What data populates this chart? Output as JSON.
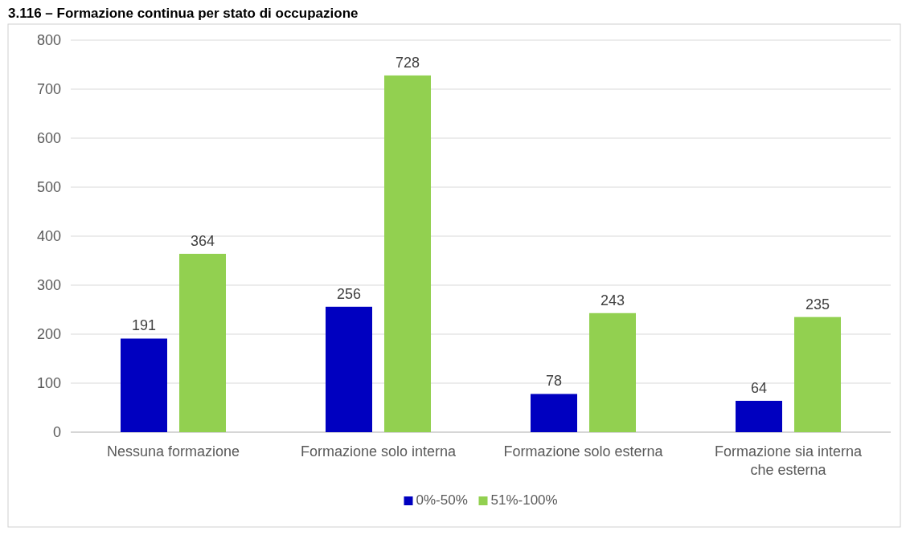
{
  "chart_data": {
    "type": "bar",
    "title": "3.116 – Formazione continua per stato di occupazione",
    "categories": [
      "Nessuna formazione",
      "Formazione solo interna",
      "Formazione solo esterna",
      "Formazione sia interna che esterna"
    ],
    "series": [
      {
        "name": "0%-50%",
        "color": "#0000c0",
        "values": [
          191,
          256,
          78,
          64
        ]
      },
      {
        "name": "51%-100%",
        "color": "#92d050",
        "values": [
          364,
          728,
          243,
          235
        ]
      }
    ],
    "ylim": [
      0,
      800
    ],
    "yticks": [
      0,
      100,
      200,
      300,
      400,
      500,
      600,
      700,
      800
    ],
    "grid": "y",
    "legend": "bottom",
    "data_labels": true
  }
}
